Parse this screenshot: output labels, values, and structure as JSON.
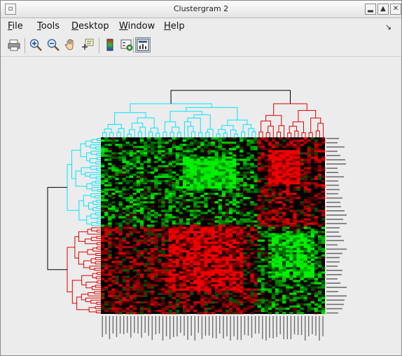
{
  "window": {
    "title": "Clustergram 2"
  },
  "menu": [
    {
      "key": "F",
      "rest": "ile"
    },
    {
      "key": "T",
      "rest": "ools"
    },
    {
      "key": "D",
      "rest": "esktop"
    },
    {
      "key": "W",
      "rest": "indow"
    },
    {
      "key": "H",
      "rest": "elp"
    }
  ],
  "toolbar": [
    {
      "name": "print-icon",
      "interactable": true
    },
    {
      "name": "zoom-in-icon",
      "interactable": true
    },
    {
      "name": "zoom-out-icon",
      "interactable": true
    },
    {
      "name": "pan-icon",
      "interactable": true
    },
    {
      "name": "data-cursor-icon",
      "interactable": true
    },
    {
      "name": "colorbar-icon",
      "interactable": true
    },
    {
      "name": "insert-legend-icon",
      "interactable": true
    },
    {
      "name": "plot-tools-icon",
      "interactable": true,
      "pressed": true
    }
  ],
  "colors": {
    "high": "#cc0000",
    "low": "#00cc00",
    "mid": "#000000",
    "dendro_top_left": "#00e5ff",
    "dendro_top_right": "#e00000",
    "dendro_root": "#000000"
  },
  "heatmap": {
    "rows": 83,
    "cols": 63
  }
}
